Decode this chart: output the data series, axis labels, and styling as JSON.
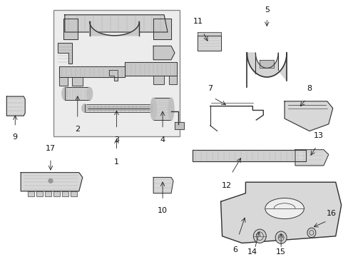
{
  "bg_color": "#ffffff",
  "fig_width": 4.89,
  "fig_height": 3.6,
  "dpi": 100,
  "text_color": "#111111",
  "line_color": "#333333",
  "fill_color": "#d8d8d8",
  "box_fill": "#e8e8e8",
  "font_size": 8
}
